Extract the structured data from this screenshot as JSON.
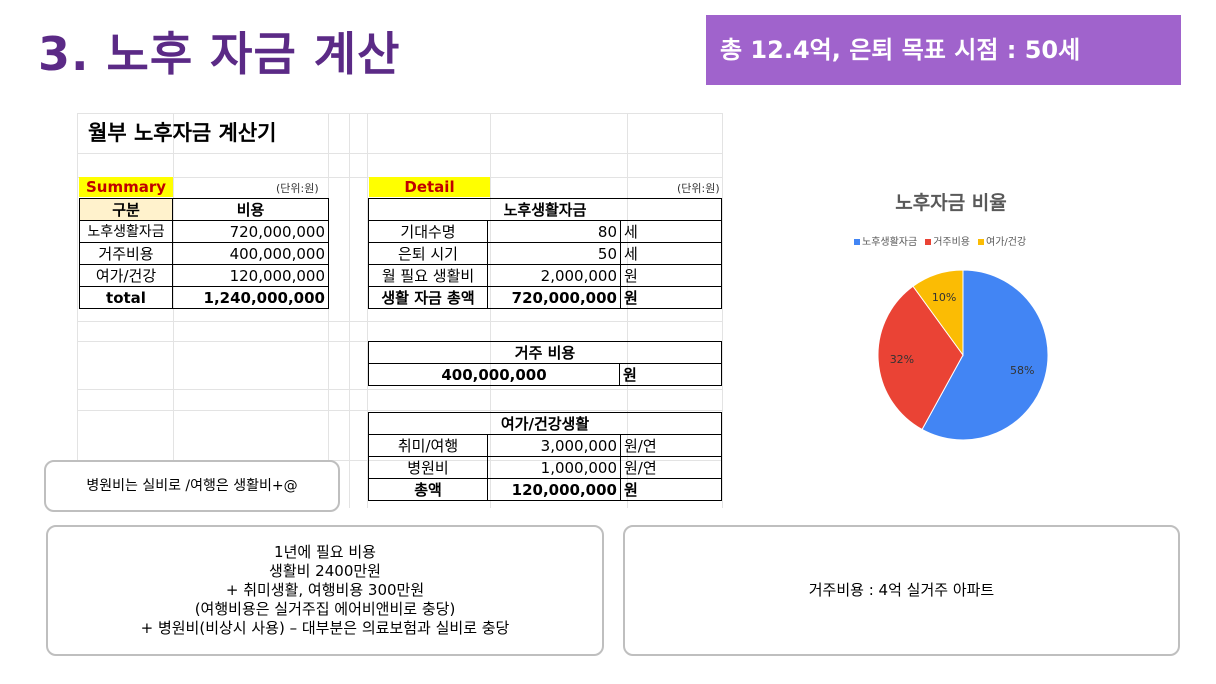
{
  "title": "3. 노후 자금 계산",
  "banner": "총 12.4억, 은퇴 목표 시점 : 50세",
  "sheet": {
    "title": "월부 노후자금 계산기",
    "summary": {
      "tag": "Summary",
      "unit": "(단위:원)",
      "header": [
        "구분",
        "비용"
      ],
      "rows": [
        [
          "노후생활자금",
          "720,000,000"
        ],
        [
          "거주비용",
          "400,000,000"
        ],
        [
          "여가/건강",
          "120,000,000"
        ]
      ],
      "total": [
        "total",
        "1,240,000,000"
      ]
    },
    "detail": {
      "tag": "Detail",
      "unit": "(단위:원)",
      "living": {
        "header": "노후생활자금",
        "rows": [
          [
            "기대수명",
            "80",
            "세"
          ],
          [
            "은퇴 시기",
            "50",
            "세"
          ],
          [
            "월 필요 생활비",
            "2,000,000",
            "원"
          ]
        ],
        "total": [
          "생활 자금 총액",
          "720,000,000",
          "원"
        ]
      },
      "housing": {
        "header": "거주 비용",
        "value": "400,000,000",
        "unit": "원"
      },
      "leisure": {
        "header": "여가/건강생활",
        "rows": [
          [
            "취미/여행",
            "3,000,000",
            "원/연"
          ],
          [
            "병원비",
            "1,000,000",
            "원/연"
          ]
        ],
        "total": [
          "총액",
          "120,000,000",
          "원"
        ]
      }
    }
  },
  "note_small": "병원비는 실비로 /여행은 생활비+@",
  "note_left": [
    "1년에 필요 비용",
    "생활비 2400만원",
    "+ 취미생활, 여행비용 300만원",
    "(여행비용은 실거주집 에어비앤비로 충당)",
    "+ 병원비(비상시 사용) – 대부분은 의료보험과 실비로 충당"
  ],
  "note_right": "거주비용 : 4억 실거주 아파트",
  "chart_data": {
    "type": "pie",
    "title": "노후자금 비율",
    "labels": [
      "노후생활자금",
      "거주비용",
      "여가/건강"
    ],
    "values": [
      58,
      32,
      10
    ],
    "value_labels": [
      "58%",
      "32%",
      "10%"
    ],
    "colors": [
      "#4285f4",
      "#ea4335",
      "#fbbc04"
    ],
    "legend": "top"
  }
}
